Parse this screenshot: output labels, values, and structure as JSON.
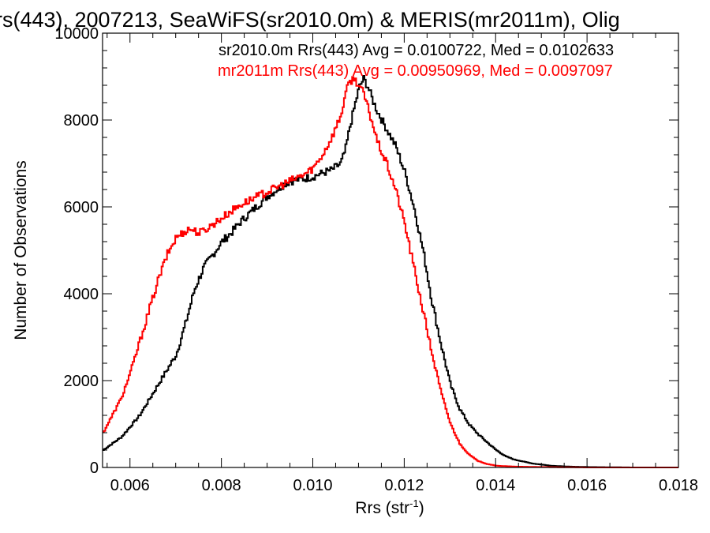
{
  "chart_data": {
    "type": "line",
    "title": "rs(443), 2007213, SeaWiFS(sr2010.0m) & MERIS(mr2011m), Olig",
    "xlabel": "Rrs (str",
    "xlabel_sup": "-1",
    "xlabel_close": ")",
    "ylabel": "Number of Observations",
    "xlim": [
      0.0054,
      0.018
    ],
    "ylim": [
      0,
      10000
    ],
    "xticks": [
      0.006,
      0.008,
      0.01,
      0.012,
      0.014,
      0.016,
      0.018
    ],
    "xtick_labels": [
      "0.006",
      "0.008",
      "0.010",
      "0.012",
      "0.014",
      "0.016",
      "0.018"
    ],
    "yticks": [
      0,
      2000,
      4000,
      6000,
      8000,
      10000
    ],
    "ytick_labels": [
      "0",
      "2000",
      "4000",
      "6000",
      "8000",
      "10000"
    ],
    "grid": false,
    "annotations": [
      {
        "text": "sr2010.0m Rrs(443) Avg = 0.0100722, Med = 0.0102633",
        "color": "#000000"
      },
      {
        "text": "mr2011m Rrs(443) Avg = 0.00950969, Med = 0.0097097",
        "color": "#ff0000"
      }
    ],
    "series": [
      {
        "color": "#000000",
        "x": [
          0.0054,
          0.0058,
          0.0062,
          0.0066,
          0.007,
          0.0072,
          0.0074,
          0.0076,
          0.0078,
          0.008,
          0.0082,
          0.0084,
          0.0086,
          0.0088,
          0.009,
          0.0092,
          0.0094,
          0.0096,
          0.0098,
          0.01,
          0.0102,
          0.0104,
          0.0106,
          0.0107,
          0.0108,
          0.0109,
          0.011,
          0.0111,
          0.0112,
          0.0113,
          0.0114,
          0.0116,
          0.0118,
          0.012,
          0.0122,
          0.0124,
          0.0126,
          0.0128,
          0.013,
          0.0132,
          0.0134,
          0.0136,
          0.0138,
          0.014,
          0.0142,
          0.0144,
          0.0148,
          0.0152,
          0.0156,
          0.016,
          0.017,
          0.018
        ],
        "y": [
          400,
          700,
          1200,
          1900,
          2600,
          3300,
          4100,
          4600,
          4900,
          5200,
          5400,
          5650,
          5850,
          6050,
          6250,
          6400,
          6550,
          6620,
          6650,
          6700,
          6780,
          6850,
          7000,
          7300,
          7850,
          8300,
          8750,
          8950,
          8750,
          8450,
          8200,
          7800,
          7400,
          6800,
          6000,
          5000,
          3800,
          2800,
          1900,
          1350,
          1000,
          770,
          580,
          400,
          260,
          180,
          90,
          40,
          20,
          10,
          0,
          0
        ]
      },
      {
        "color": "#ff0000",
        "x": [
          0.0054,
          0.0056,
          0.0058,
          0.006,
          0.0062,
          0.0064,
          0.0066,
          0.0068,
          0.007,
          0.0072,
          0.0073,
          0.0075,
          0.0076,
          0.0078,
          0.008,
          0.0082,
          0.0084,
          0.0086,
          0.0088,
          0.009,
          0.0092,
          0.0094,
          0.0096,
          0.0098,
          0.01,
          0.0102,
          0.0104,
          0.0106,
          0.0107,
          0.0108,
          0.0109,
          0.011,
          0.0111,
          0.0112,
          0.0113,
          0.0114,
          0.0116,
          0.0118,
          0.012,
          0.0122,
          0.0124,
          0.0126,
          0.0128,
          0.013,
          0.0132,
          0.0134,
          0.0136,
          0.0138,
          0.014,
          0.0144,
          0.015,
          0.016,
          0.017,
          0.018
        ],
        "y": [
          800,
          1200,
          1600,
          2200,
          2900,
          3600,
          4300,
          4900,
          5300,
          5450,
          5500,
          5400,
          5450,
          5600,
          5750,
          5900,
          6050,
          6150,
          6250,
          6350,
          6450,
          6550,
          6650,
          6750,
          6900,
          7200,
          7600,
          8100,
          8600,
          8900,
          8950,
          8800,
          8600,
          8250,
          7900,
          7500,
          7000,
          6400,
          5600,
          4600,
          3600,
          2600,
          1700,
          1000,
          550,
          300,
          150,
          80,
          40,
          20,
          10,
          0,
          0,
          0
        ]
      }
    ]
  }
}
